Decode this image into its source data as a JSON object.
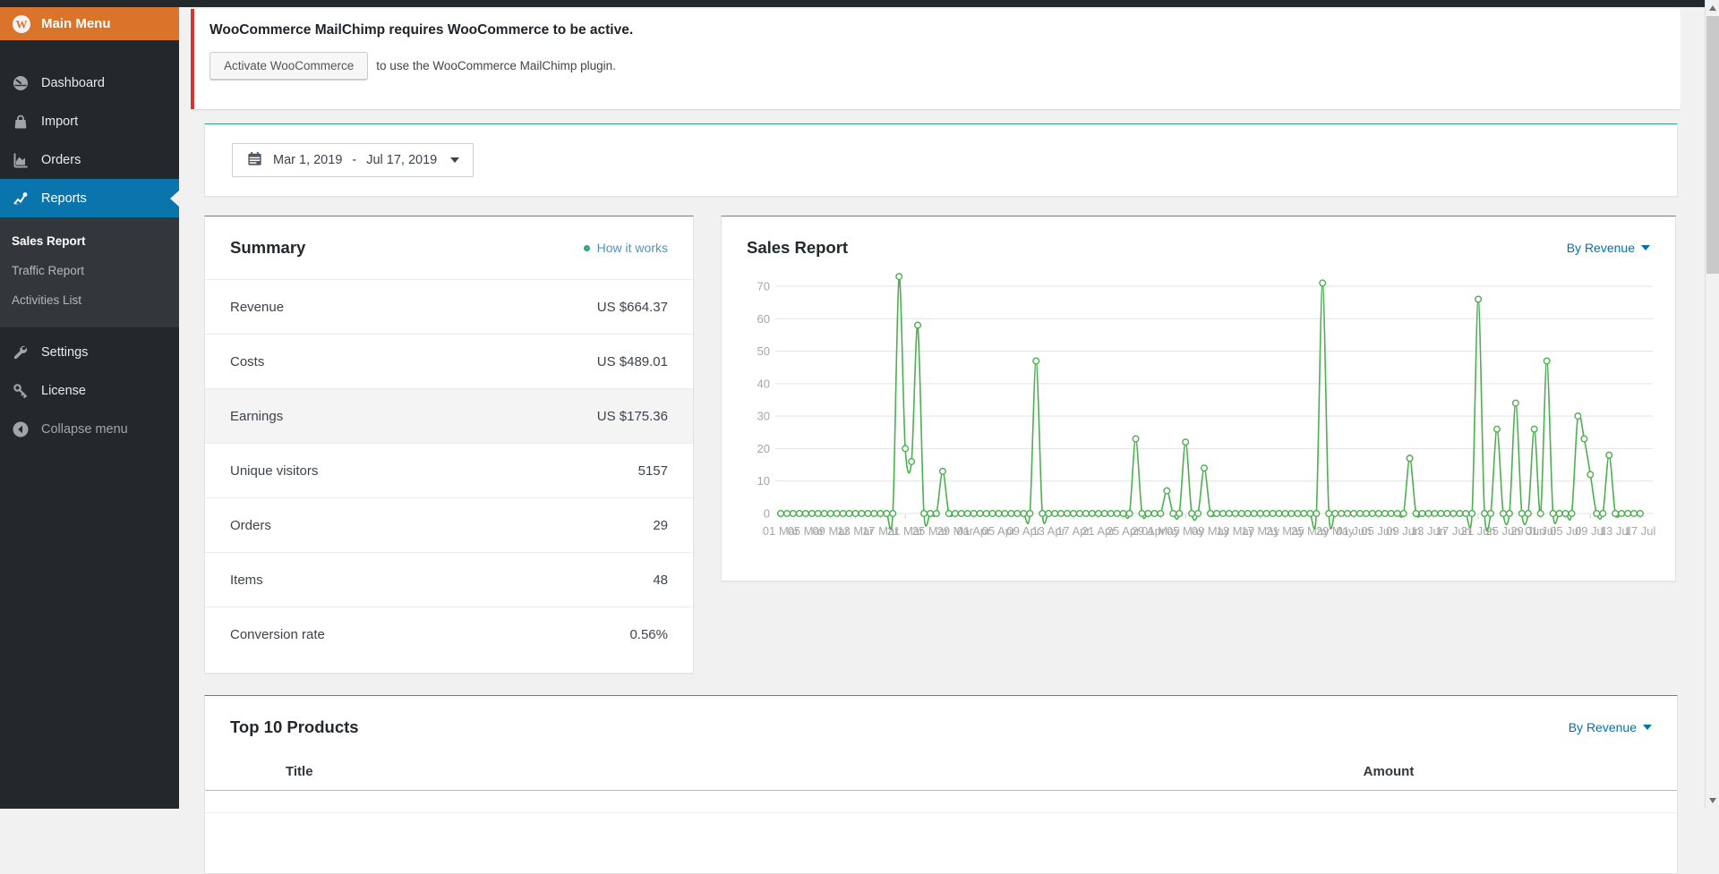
{
  "colors": {
    "sidebar_dark": "#23282d",
    "submenu_dark": "#32373c",
    "menu_orange": "#d9742a",
    "active_blue": "#0a74ad",
    "notice_red": "#dc3232",
    "card_accent_teal": "#2e9e85",
    "link_blue": "#0073aa",
    "chart_green": "#4caf50",
    "content_bg": "#f1f1f1"
  },
  "sidebar": {
    "header_label": "Main Menu",
    "items": [
      {
        "label": "Dashboard"
      },
      {
        "label": "Import"
      },
      {
        "label": "Orders"
      },
      {
        "label": "Reports",
        "active": true
      }
    ],
    "submenu_items": [
      {
        "label": "Sales Report",
        "active": true
      },
      {
        "label": "Traffic Report"
      },
      {
        "label": "Activities List"
      }
    ],
    "lower_items": [
      {
        "label": "Settings"
      },
      {
        "label": "License"
      }
    ],
    "collapse_label": "Collapse menu"
  },
  "notice": {
    "title": "WooCommerce MailChimp requires WooCommerce to be active.",
    "button_label": "Activate WooCommerce",
    "text": "to use the WooCommerce MailChimp plugin."
  },
  "date_range": {
    "start": "Mar 1, 2019",
    "separator": "-",
    "end": "Jul 17, 2019"
  },
  "summary": {
    "title": "Summary",
    "help_link": "How it works",
    "rows": [
      {
        "label": "Revenue",
        "value": "US $664.37"
      },
      {
        "label": "Costs",
        "value": "US $489.01"
      },
      {
        "label": "Earnings",
        "value": "US $175.36",
        "highlight": true
      },
      {
        "label": "Unique visitors",
        "value": "5157"
      },
      {
        "label": "Orders",
        "value": "29"
      },
      {
        "label": "Items",
        "value": "48"
      },
      {
        "label": "Conversion rate",
        "value": "0.56%"
      }
    ]
  },
  "sales_report": {
    "title": "Sales Report",
    "filter_label": "By Revenue"
  },
  "top_products": {
    "title": "Top 10 Products",
    "filter_label": "By Revenue",
    "columns": [
      "Title",
      "Amount"
    ]
  },
  "chart_data": {
    "type": "line",
    "title": "Sales Report (By Revenue)",
    "series_name": "Revenue",
    "x_start_date": "Mar 1, 2019",
    "x_end_date": "Jul 17, 2019",
    "x_interval": "daily",
    "ylim": [
      0,
      70
    ],
    "y_ticks": [
      0,
      10,
      20,
      30,
      40,
      50,
      60,
      70
    ],
    "grid": true,
    "legend": "none",
    "line_color": "#4caf50",
    "marker": "open-circle",
    "x_tick_labels": [
      [
        0,
        "01 Mar"
      ],
      [
        4,
        "05 Mar"
      ],
      [
        8,
        "09 Mar"
      ],
      [
        12,
        "13 Mar"
      ],
      [
        16,
        "17 Mar"
      ],
      [
        20,
        "21 Mar"
      ],
      [
        24,
        "25 Mar"
      ],
      [
        28,
        "29 Mar"
      ],
      [
        31,
        "01 Apr"
      ],
      [
        35,
        "05 Apr"
      ],
      [
        39,
        "09 Apr"
      ],
      [
        43,
        "13 Apr"
      ],
      [
        47,
        "17 Apr"
      ],
      [
        51,
        "21 Apr"
      ],
      [
        55,
        "25 Apr"
      ],
      [
        59,
        "29 Apr"
      ],
      [
        61,
        "01 May"
      ],
      [
        65,
        "05 May"
      ],
      [
        69,
        "09 May"
      ],
      [
        73,
        "13 May"
      ],
      [
        77,
        "17 May"
      ],
      [
        81,
        "21 May"
      ],
      [
        85,
        "25 May"
      ],
      [
        89,
        "29 May"
      ],
      [
        92,
        "01 Jun"
      ],
      [
        96,
        "05 Jun"
      ],
      [
        100,
        "09 Jun"
      ],
      [
        104,
        "13 Jun"
      ],
      [
        108,
        "17 Jun"
      ],
      [
        112,
        "21 Jun"
      ],
      [
        116,
        "25 Jun"
      ],
      [
        120,
        "29 Jun"
      ],
      [
        122,
        "01 Jul"
      ],
      [
        126,
        "05 Jul"
      ],
      [
        130,
        "09 Jul"
      ],
      [
        134,
        "13 Jul"
      ],
      [
        138,
        "17 Jul"
      ]
    ],
    "values": [
      0,
      0,
      0,
      0,
      0,
      0,
      0,
      0,
      0,
      0,
      0,
      0,
      0,
      0,
      0,
      0,
      0,
      0,
      0,
      73,
      20,
      16,
      58,
      0,
      0,
      0,
      13,
      0,
      0,
      0,
      0,
      0,
      0,
      0,
      0,
      0,
      0,
      0,
      0,
      0,
      0,
      47,
      0,
      0,
      0,
      0,
      0,
      0,
      0,
      0,
      0,
      0,
      0,
      0,
      0,
      0,
      0,
      23,
      0,
      0,
      0,
      0,
      7,
      0,
      0,
      22,
      0,
      0,
      14,
      0,
      0,
      0,
      0,
      0,
      0,
      0,
      0,
      0,
      0,
      0,
      0,
      0,
      0,
      0,
      0,
      0,
      0,
      71,
      0,
      0,
      0,
      0,
      0,
      0,
      0,
      0,
      0,
      0,
      0,
      0,
      0,
      17,
      0,
      0,
      0,
      0,
      0,
      0,
      0,
      0,
      0,
      0,
      66,
      0,
      0,
      26,
      0,
      0,
      34,
      0,
      0,
      26,
      0,
      47,
      0,
      0,
      0,
      0,
      30,
      23,
      12,
      0,
      0,
      18,
      0,
      0,
      0,
      0,
      0
    ]
  }
}
